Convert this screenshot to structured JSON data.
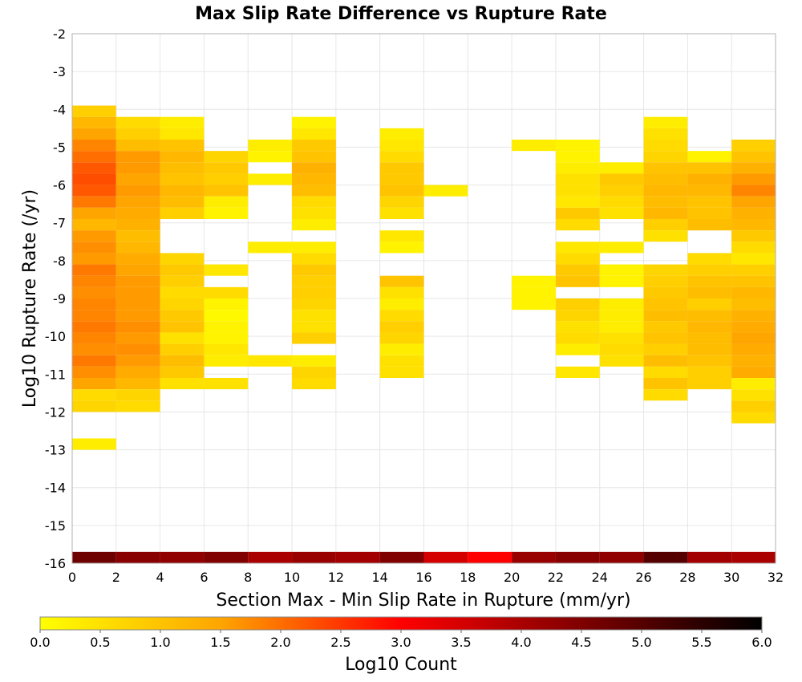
{
  "chart_data": {
    "type": "heatmap",
    "title": "Max Slip Rate Difference vs Rupture Rate",
    "xlabel": "Section Max - Min Slip Rate in Rupture (mm/yr)",
    "ylabel": "Log10 Rupture Rate (/yr)",
    "xlim": [
      0,
      32
    ],
    "ylim": [
      -16,
      -2
    ],
    "x_ticks": [
      "0",
      "2",
      "4",
      "6",
      "8",
      "10",
      "12",
      "14",
      "16",
      "18",
      "20",
      "22",
      "24",
      "26",
      "28",
      "30",
      "32"
    ],
    "y_ticks": [
      "-2",
      "-3",
      "-4",
      "-5",
      "-6",
      "-7",
      "-8",
      "-9",
      "-10",
      "-11",
      "-12",
      "-13",
      "-14",
      "-15",
      "-16"
    ],
    "bin_width_x": 2,
    "bin_height_y": 0.3,
    "grid": true,
    "colorbar": {
      "label": "Log10 Count",
      "min": 0,
      "max": 6,
      "ticks": [
        "0.0",
        "0.5",
        "1.0",
        "1.5",
        "2.0",
        "2.5",
        "3.0",
        "3.5",
        "4.0",
        "4.5",
        "5.0",
        "5.5",
        "6.0"
      ],
      "colors": [
        "#ffff00",
        "#ffa500",
        "#ff0000",
        "#000000"
      ]
    },
    "cells_note": "columns listed by x-bin start; each cell: [y_bin_start, log10_count]",
    "columns": [
      {
        "x": 0,
        "cells": [
          [
            -4.2,
            0.8
          ],
          [
            -4.5,
            1.2
          ],
          [
            -4.8,
            1.5
          ],
          [
            -5.1,
            1.8
          ],
          [
            -5.4,
            2.0
          ],
          [
            -5.7,
            2.2
          ],
          [
            -6.0,
            2.3
          ],
          [
            -6.3,
            2.2
          ],
          [
            -6.6,
            1.9
          ],
          [
            -6.9,
            1.5
          ],
          [
            -7.2,
            1.2
          ],
          [
            -7.5,
            1.6
          ],
          [
            -7.8,
            1.7
          ],
          [
            -8.1,
            1.6
          ],
          [
            -8.4,
            1.9
          ],
          [
            -8.7,
            1.8
          ],
          [
            -9.0,
            1.7
          ],
          [
            -9.3,
            1.8
          ],
          [
            -9.6,
            1.8
          ],
          [
            -9.9,
            1.9
          ],
          [
            -10.2,
            1.8
          ],
          [
            -10.5,
            1.7
          ],
          [
            -10.8,
            1.9
          ],
          [
            -11.1,
            1.7
          ],
          [
            -11.4,
            1.5
          ],
          [
            -11.7,
            0.6
          ],
          [
            -12.0,
            0.7
          ],
          [
            -13.0,
            0.3
          ]
        ]
      },
      {
        "x": 2,
        "cells": [
          [
            -4.5,
            0.6
          ],
          [
            -4.8,
            0.8
          ],
          [
            -5.1,
            1.1
          ],
          [
            -5.4,
            1.6
          ],
          [
            -5.7,
            1.6
          ],
          [
            -6.0,
            1.5
          ],
          [
            -6.3,
            1.6
          ],
          [
            -6.6,
            1.5
          ],
          [
            -6.9,
            1.4
          ],
          [
            -7.2,
            1.3
          ],
          [
            -7.5,
            1.1
          ],
          [
            -7.8,
            1.2
          ],
          [
            -8.1,
            1.4
          ],
          [
            -8.4,
            1.5
          ],
          [
            -8.7,
            1.6
          ],
          [
            -9.0,
            1.6
          ],
          [
            -9.3,
            1.6
          ],
          [
            -9.6,
            1.6
          ],
          [
            -9.9,
            1.7
          ],
          [
            -10.2,
            1.6
          ],
          [
            -10.5,
            1.7
          ],
          [
            -10.8,
            1.6
          ],
          [
            -11.1,
            1.4
          ],
          [
            -11.4,
            1.2
          ],
          [
            -11.7,
            0.7
          ],
          [
            -12.0,
            0.6
          ]
        ]
      },
      {
        "x": 4,
        "cells": [
          [
            -4.5,
            0.3
          ],
          [
            -4.8,
            0.4
          ],
          [
            -5.1,
            1.0
          ],
          [
            -5.4,
            1.2
          ],
          [
            -5.7,
            1.1
          ],
          [
            -6.0,
            1.0
          ],
          [
            -6.3,
            1.2
          ],
          [
            -6.6,
            1.1
          ],
          [
            -6.9,
            0.8
          ],
          [
            -8.1,
            0.7
          ],
          [
            -8.4,
            0.9
          ],
          [
            -8.7,
            0.8
          ],
          [
            -9.0,
            0.6
          ],
          [
            -9.3,
            0.7
          ],
          [
            -9.6,
            0.9
          ],
          [
            -9.9,
            1.0
          ],
          [
            -10.2,
            0.5
          ],
          [
            -10.5,
            0.8
          ],
          [
            -10.8,
            1.1
          ],
          [
            -11.1,
            0.9
          ],
          [
            -11.4,
            0.5
          ]
        ]
      },
      {
        "x": 6,
        "cells": [
          [
            -5.4,
            0.7
          ],
          [
            -5.7,
            0.9
          ],
          [
            -6.0,
            0.8
          ],
          [
            -6.3,
            1.0
          ],
          [
            -6.6,
            0.3
          ],
          [
            -6.9,
            0.2
          ],
          [
            -8.4,
            0.4
          ],
          [
            -9.0,
            0.6
          ],
          [
            -9.3,
            0.2
          ],
          [
            -9.6,
            0.1
          ],
          [
            -9.9,
            0.2
          ],
          [
            -10.2,
            0.2
          ],
          [
            -10.5,
            0.4
          ],
          [
            -10.8,
            0.3
          ],
          [
            -11.4,
            0.5
          ]
        ]
      },
      {
        "x": 8,
        "cells": [
          [
            -5.1,
            0.3
          ],
          [
            -5.4,
            0.2
          ],
          [
            -6.0,
            0.3
          ],
          [
            -7.8,
            0.3
          ],
          [
            -10.8,
            0.4
          ]
        ]
      },
      {
        "x": 10,
        "cells": [
          [
            -4.5,
            0.2
          ],
          [
            -4.8,
            0.4
          ],
          [
            -5.1,
            0.9
          ],
          [
            -5.4,
            1.0
          ],
          [
            -5.7,
            1.3
          ],
          [
            -6.0,
            1.2
          ],
          [
            -6.3,
            1.1
          ],
          [
            -6.6,
            0.6
          ],
          [
            -6.9,
            0.5
          ],
          [
            -7.2,
            0.3
          ],
          [
            -7.8,
            0.3
          ],
          [
            -8.1,
            0.6
          ],
          [
            -8.4,
            0.9
          ],
          [
            -8.7,
            0.8
          ],
          [
            -9.0,
            0.8
          ],
          [
            -9.3,
            0.7
          ],
          [
            -9.6,
            0.5
          ],
          [
            -9.9,
            0.5
          ],
          [
            -10.2,
            0.8
          ],
          [
            -10.8,
            0.3
          ],
          [
            -11.1,
            0.7
          ],
          [
            -11.4,
            0.6
          ]
        ]
      },
      {
        "x": 14,
        "cells": [
          [
            -4.8,
            0.3
          ],
          [
            -5.1,
            0.4
          ],
          [
            -5.4,
            0.6
          ],
          [
            -5.7,
            0.9
          ],
          [
            -6.0,
            0.9
          ],
          [
            -6.3,
            1.0
          ],
          [
            -6.6,
            0.7
          ],
          [
            -6.9,
            0.5
          ],
          [
            -7.5,
            0.4
          ],
          [
            -7.8,
            0.2
          ],
          [
            -8.7,
            1.0
          ],
          [
            -9.0,
            0.5
          ],
          [
            -9.3,
            0.3
          ],
          [
            -9.6,
            0.6
          ],
          [
            -9.9,
            0.8
          ],
          [
            -10.2,
            0.7
          ],
          [
            -10.5,
            0.3
          ],
          [
            -10.8,
            0.5
          ],
          [
            -11.1,
            0.5
          ]
        ]
      },
      {
        "x": 16,
        "cells": [
          [
            -6.3,
            0.3
          ]
        ]
      },
      {
        "x": 20,
        "cells": [
          [
            -5.1,
            0.3
          ],
          [
            -8.7,
            0.2
          ],
          [
            -9.0,
            0.2
          ],
          [
            -9.3,
            0.2
          ]
        ]
      },
      {
        "x": 22,
        "cells": [
          [
            -5.1,
            0.2
          ],
          [
            -5.4,
            0.2
          ],
          [
            -5.7,
            0.3
          ],
          [
            -6.0,
            0.5
          ],
          [
            -6.3,
            0.5
          ],
          [
            -6.6,
            0.4
          ],
          [
            -6.9,
            0.9
          ],
          [
            -7.2,
            0.6
          ],
          [
            -7.8,
            0.4
          ],
          [
            -8.1,
            0.6
          ],
          [
            -8.4,
            0.9
          ],
          [
            -8.7,
            1.0
          ],
          [
            -9.3,
            0.8
          ],
          [
            -9.6,
            0.7
          ],
          [
            -9.9,
            0.5
          ],
          [
            -10.2,
            0.6
          ],
          [
            -10.5,
            0.3
          ],
          [
            -11.1,
            0.4
          ]
        ]
      },
      {
        "x": 24,
        "cells": [
          [
            -5.7,
            0.3
          ],
          [
            -6.0,
            0.9
          ],
          [
            -6.3,
            0.8
          ],
          [
            -6.6,
            0.6
          ],
          [
            -6.9,
            0.5
          ],
          [
            -7.8,
            0.3
          ],
          [
            -8.4,
            0.2
          ],
          [
            -8.7,
            0.2
          ],
          [
            -9.3,
            0.3
          ],
          [
            -9.6,
            0.3
          ],
          [
            -9.9,
            0.3
          ],
          [
            -10.2,
            0.5
          ],
          [
            -10.5,
            0.6
          ],
          [
            -10.8,
            0.5
          ]
        ]
      },
      {
        "x": 26,
        "cells": [
          [
            -4.5,
            0.3
          ],
          [
            -4.8,
            0.5
          ],
          [
            -5.1,
            0.6
          ],
          [
            -5.4,
            0.7
          ],
          [
            -5.7,
            1.0
          ],
          [
            -6.0,
            1.1
          ],
          [
            -6.3,
            1.2
          ],
          [
            -6.6,
            1.1
          ],
          [
            -6.9,
            1.2
          ],
          [
            -7.2,
            0.8
          ],
          [
            -7.5,
            0.5
          ],
          [
            -8.4,
            0.7
          ],
          [
            -8.7,
            0.8
          ],
          [
            -9.0,
            0.9
          ],
          [
            -9.3,
            1.0
          ],
          [
            -9.6,
            1.1
          ],
          [
            -9.9,
            0.9
          ],
          [
            -10.2,
            1.0
          ],
          [
            -10.5,
            0.8
          ],
          [
            -10.8,
            1.1
          ],
          [
            -11.1,
            0.6
          ],
          [
            -11.4,
            1.0
          ],
          [
            -11.7,
            0.6
          ]
        ]
      },
      {
        "x": 28,
        "cells": [
          [
            -5.4,
            0.2
          ],
          [
            -5.7,
            1.0
          ],
          [
            -6.0,
            1.3
          ],
          [
            -6.3,
            1.2
          ],
          [
            -6.6,
            1.0
          ],
          [
            -6.9,
            1.0
          ],
          [
            -7.2,
            1.1
          ],
          [
            -8.1,
            0.6
          ],
          [
            -8.4,
            0.8
          ],
          [
            -8.7,
            1.0
          ],
          [
            -9.0,
            1.1
          ],
          [
            -9.3,
            0.8
          ],
          [
            -9.6,
            1.1
          ],
          [
            -9.9,
            1.2
          ],
          [
            -10.2,
            1.1
          ],
          [
            -10.5,
            1.1
          ],
          [
            -10.8,
            1.0
          ],
          [
            -11.1,
            0.8
          ],
          [
            -11.4,
            0.8
          ]
        ]
      },
      {
        "x": 30,
        "cells": [
          [
            -5.1,
            0.8
          ],
          [
            -5.4,
            1.0
          ],
          [
            -5.7,
            1.3
          ],
          [
            -6.0,
            1.6
          ],
          [
            -6.3,
            1.8
          ],
          [
            -6.6,
            1.5
          ],
          [
            -6.9,
            1.3
          ],
          [
            -7.2,
            1.2
          ],
          [
            -7.5,
            0.9
          ],
          [
            -7.8,
            0.6
          ],
          [
            -8.1,
            0.4
          ],
          [
            -8.4,
            0.8
          ],
          [
            -8.7,
            1.0
          ],
          [
            -9.0,
            1.2
          ],
          [
            -9.3,
            1.1
          ],
          [
            -9.6,
            1.3
          ],
          [
            -9.9,
            1.4
          ],
          [
            -10.2,
            1.5
          ],
          [
            -10.5,
            1.4
          ],
          [
            -10.8,
            1.3
          ],
          [
            -11.1,
            1.4
          ],
          [
            -11.4,
            0.3
          ],
          [
            -11.7,
            0.5
          ],
          [
            -12.0,
            0.8
          ],
          [
            -12.3,
            0.6
          ]
        ]
      }
    ],
    "bottom_row": {
      "y": -16,
      "values": [
        4.7,
        4.4,
        4.3,
        4.5,
        4.0,
        4.2,
        4.1,
        4.5,
        3.5,
        3.0,
        4.2,
        4.4,
        4.3,
        5.0,
        4.1,
        4.0
      ]
    }
  }
}
